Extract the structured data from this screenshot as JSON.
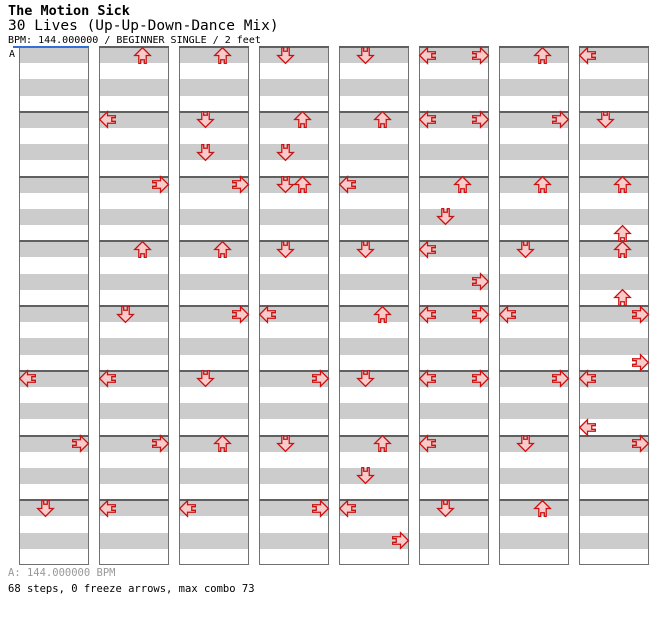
{
  "header": {
    "artist": "The Motion Sick",
    "song_title": "30 Lives (Up-Up-Down-Dance Mix)",
    "bpm_line": "BPM: 144.000000 / BEGINNER SINGLE / 2 feet"
  },
  "marker": {
    "label": "A"
  },
  "footer": {
    "bpm_info": "A: 144.000000 BPM",
    "stats": "68 steps, 0 freeze arrows, max combo 73"
  },
  "colors": {
    "stripe_gray": "#cccccc",
    "separator_gray": "#606060",
    "column_border": "#707070",
    "marker_blue": "#3070d8",
    "arrow_outline": "#cc1111",
    "arrow_fill": "#f8caca",
    "footer_gray": "#999999"
  },
  "chart_data": {
    "type": "step-chart",
    "columns": 8,
    "measures_per_column": 8,
    "beats_per_measure": 4,
    "lanes": [
      "left",
      "down",
      "up",
      "right"
    ],
    "notes": [
      {
        "col": 1,
        "measure": 6,
        "beat": 1,
        "dir": "left"
      },
      {
        "col": 1,
        "measure": 7,
        "beat": 1,
        "dir": "right"
      },
      {
        "col": 1,
        "measure": 8,
        "beat": 1,
        "dir": "down"
      },
      {
        "col": 2,
        "measure": 1,
        "beat": 1,
        "dir": "up"
      },
      {
        "col": 2,
        "measure": 2,
        "beat": 1,
        "dir": "left"
      },
      {
        "col": 2,
        "measure": 3,
        "beat": 1,
        "dir": "right"
      },
      {
        "col": 2,
        "measure": 4,
        "beat": 1,
        "dir": "up"
      },
      {
        "col": 2,
        "measure": 5,
        "beat": 1,
        "dir": "down"
      },
      {
        "col": 2,
        "measure": 6,
        "beat": 1,
        "dir": "left"
      },
      {
        "col": 2,
        "measure": 7,
        "beat": 1,
        "dir": "right"
      },
      {
        "col": 2,
        "measure": 8,
        "beat": 1,
        "dir": "left"
      },
      {
        "col": 3,
        "measure": 1,
        "beat": 1,
        "dir": "up"
      },
      {
        "col": 3,
        "measure": 2,
        "beat": 1,
        "dir": "down"
      },
      {
        "col": 3,
        "measure": 2,
        "beat": 3,
        "dir": "down"
      },
      {
        "col": 3,
        "measure": 3,
        "beat": 1,
        "dir": "right"
      },
      {
        "col": 3,
        "measure": 4,
        "beat": 1,
        "dir": "up"
      },
      {
        "col": 3,
        "measure": 5,
        "beat": 1,
        "dir": "right"
      },
      {
        "col": 3,
        "measure": 6,
        "beat": 1,
        "dir": "down"
      },
      {
        "col": 3,
        "measure": 7,
        "beat": 1,
        "dir": "up"
      },
      {
        "col": 3,
        "measure": 8,
        "beat": 1,
        "dir": "left"
      },
      {
        "col": 4,
        "measure": 1,
        "beat": 1,
        "dir": "down"
      },
      {
        "col": 4,
        "measure": 2,
        "beat": 1,
        "dir": "up"
      },
      {
        "col": 4,
        "measure": 2,
        "beat": 3,
        "dir": "down"
      },
      {
        "col": 4,
        "measure": 3,
        "beat": 1,
        "dir": "down"
      },
      {
        "col": 4,
        "measure": 3,
        "beat": 1,
        "dir": "up"
      },
      {
        "col": 4,
        "measure": 4,
        "beat": 1,
        "dir": "down"
      },
      {
        "col": 4,
        "measure": 5,
        "beat": 1,
        "dir": "left"
      },
      {
        "col": 4,
        "measure": 6,
        "beat": 1,
        "dir": "right"
      },
      {
        "col": 4,
        "measure": 7,
        "beat": 1,
        "dir": "down"
      },
      {
        "col": 4,
        "measure": 8,
        "beat": 1,
        "dir": "right"
      },
      {
        "col": 5,
        "measure": 1,
        "beat": 1,
        "dir": "down"
      },
      {
        "col": 5,
        "measure": 2,
        "beat": 1,
        "dir": "up"
      },
      {
        "col": 5,
        "measure": 3,
        "beat": 1,
        "dir": "left"
      },
      {
        "col": 5,
        "measure": 4,
        "beat": 1,
        "dir": "down"
      },
      {
        "col": 5,
        "measure": 5,
        "beat": 1,
        "dir": "up"
      },
      {
        "col": 5,
        "measure": 6,
        "beat": 1,
        "dir": "down"
      },
      {
        "col": 5,
        "measure": 7,
        "beat": 1,
        "dir": "up"
      },
      {
        "col": 5,
        "measure": 7,
        "beat": 3,
        "dir": "down"
      },
      {
        "col": 5,
        "measure": 8,
        "beat": 1,
        "dir": "left"
      },
      {
        "col": 5,
        "measure": 8,
        "beat": 3,
        "dir": "right"
      },
      {
        "col": 6,
        "measure": 1,
        "beat": 1,
        "dir": "left"
      },
      {
        "col": 6,
        "measure": 1,
        "beat": 1,
        "dir": "right"
      },
      {
        "col": 6,
        "measure": 2,
        "beat": 1,
        "dir": "left"
      },
      {
        "col": 6,
        "measure": 2,
        "beat": 1,
        "dir": "right"
      },
      {
        "col": 6,
        "measure": 3,
        "beat": 1,
        "dir": "up"
      },
      {
        "col": 6,
        "measure": 3,
        "beat": 3,
        "dir": "down"
      },
      {
        "col": 6,
        "measure": 4,
        "beat": 1,
        "dir": "left"
      },
      {
        "col": 6,
        "measure": 4,
        "beat": 3,
        "dir": "right"
      },
      {
        "col": 6,
        "measure": 5,
        "beat": 1,
        "dir": "left"
      },
      {
        "col": 6,
        "measure": 5,
        "beat": 1,
        "dir": "right"
      },
      {
        "col": 6,
        "measure": 6,
        "beat": 1,
        "dir": "left"
      },
      {
        "col": 6,
        "measure": 6,
        "beat": 1,
        "dir": "right"
      },
      {
        "col": 6,
        "measure": 7,
        "beat": 1,
        "dir": "left"
      },
      {
        "col": 6,
        "measure": 8,
        "beat": 1,
        "dir": "down"
      },
      {
        "col": 7,
        "measure": 1,
        "beat": 1,
        "dir": "up"
      },
      {
        "col": 7,
        "measure": 2,
        "beat": 1,
        "dir": "right"
      },
      {
        "col": 7,
        "measure": 3,
        "beat": 1,
        "dir": "up"
      },
      {
        "col": 7,
        "measure": 4,
        "beat": 1,
        "dir": "down"
      },
      {
        "col": 7,
        "measure": 5,
        "beat": 1,
        "dir": "left"
      },
      {
        "col": 7,
        "measure": 6,
        "beat": 1,
        "dir": "right"
      },
      {
        "col": 7,
        "measure": 7,
        "beat": 1,
        "dir": "down"
      },
      {
        "col": 7,
        "measure": 8,
        "beat": 1,
        "dir": "up"
      },
      {
        "col": 8,
        "measure": 1,
        "beat": 1,
        "dir": "left"
      },
      {
        "col": 8,
        "measure": 2,
        "beat": 1,
        "dir": "down"
      },
      {
        "col": 8,
        "measure": 3,
        "beat": 1,
        "dir": "up"
      },
      {
        "col": 8,
        "measure": 3,
        "beat": 4,
        "dir": "up"
      },
      {
        "col": 8,
        "measure": 4,
        "beat": 1,
        "dir": "up"
      },
      {
        "col": 8,
        "measure": 4,
        "beat": 4,
        "dir": "up"
      },
      {
        "col": 8,
        "measure": 5,
        "beat": 1,
        "dir": "right"
      },
      {
        "col": 8,
        "measure": 5,
        "beat": 4,
        "dir": "right"
      },
      {
        "col": 8,
        "measure": 6,
        "beat": 1,
        "dir": "left"
      },
      {
        "col": 8,
        "measure": 6,
        "beat": 4,
        "dir": "left"
      },
      {
        "col": 8,
        "measure": 7,
        "beat": 1,
        "dir": "right"
      }
    ]
  }
}
